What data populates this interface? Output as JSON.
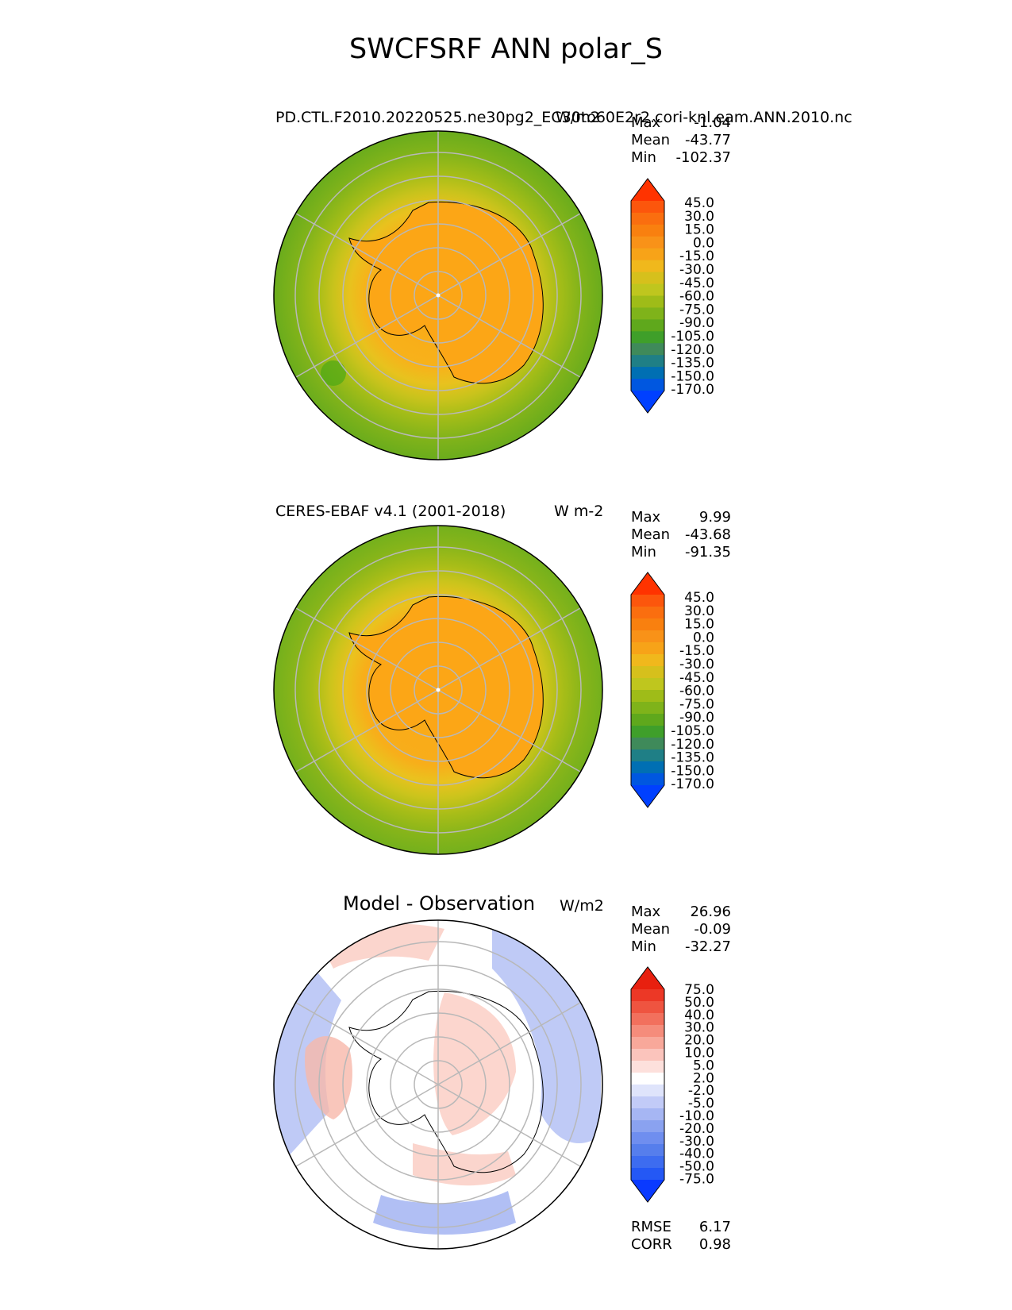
{
  "figure_title": "SWCFSRF ANN polar_S",
  "colors": {
    "map_seq": [
      "#0040ff",
      "#0057e0",
      "#006fb3",
      "#1f7f86",
      "#3f8a5a",
      "#3f9f2a",
      "#5fa81c",
      "#7fb31a",
      "#9fbc18",
      "#bfc61e",
      "#d6c01c",
      "#f0b81c",
      "#f7a318",
      "#f99218",
      "#f9800f",
      "#fa6e0f",
      "#fc560c",
      "#ff3300"
    ],
    "diff": [
      "#0a3aff",
      "#2458f5",
      "#3d6cf0",
      "#567eec",
      "#6f8eef",
      "#8aa2f0",
      "#a6b6f3",
      "#c2cbf7",
      "#dfe4fb",
      "#ffffff",
      "#fde0dc",
      "#fbc4bc",
      "#f8a89a",
      "#f58c7b",
      "#f2705d",
      "#ef5440",
      "#ec3826",
      "#e8200f"
    ],
    "continent_orange": "#fca616",
    "grid": "#b8b8b8"
  },
  "panels": [
    {
      "id": "test",
      "left_title": "PD.CTL.F2010.20220525.ne30pg2_EC30to60E2r2.cori-knl.eam.ANN.2010.nc",
      "right_title": "W/m2",
      "stats": {
        "max_label": "Max",
        "max": "-1.04",
        "mean_label": "Mean",
        "mean": "-43.77",
        "min_label": "Min",
        "min": "-102.37"
      },
      "colorbar_labels": [
        "45.0",
        "30.0",
        "15.0",
        "0.0",
        "-15.0",
        "-30.0",
        "-45.0",
        "-60.0",
        "-75.0",
        "-90.0",
        "-105.0",
        "-120.0",
        "-135.0",
        "-150.0",
        "-170.0"
      ]
    },
    {
      "id": "ref",
      "left_title": "CERES-EBAF v4.1 (2001-2018)",
      "right_title": "W m-2",
      "stats": {
        "max_label": "Max",
        "max": "9.99",
        "mean_label": "Mean",
        "mean": "-43.68",
        "min_label": "Min",
        "min": "-91.35"
      },
      "colorbar_labels": [
        "45.0",
        "30.0",
        "15.0",
        "0.0",
        "-15.0",
        "-30.0",
        "-45.0",
        "-60.0",
        "-75.0",
        "-90.0",
        "-105.0",
        "-120.0",
        "-135.0",
        "-150.0",
        "-170.0"
      ]
    },
    {
      "id": "diff",
      "center_title": "Model - Observation",
      "right_title": "W/m2",
      "stats": {
        "max_label": "Max",
        "max": "26.96",
        "mean_label": "Mean",
        "mean": "-0.09",
        "min_label": "Min",
        "min": "-32.27"
      },
      "colorbar_labels": [
        "75.0",
        "50.0",
        "40.0",
        "30.0",
        "20.0",
        "10.0",
        "5.0",
        "2.0",
        "-2.0",
        "-5.0",
        "-10.0",
        "-20.0",
        "-30.0",
        "-40.0",
        "-50.0",
        "-75.0"
      ],
      "metrics": {
        "rmse_label": "RMSE",
        "rmse": "6.17",
        "corr_label": "CORR",
        "corr": "0.98"
      }
    }
  ]
}
